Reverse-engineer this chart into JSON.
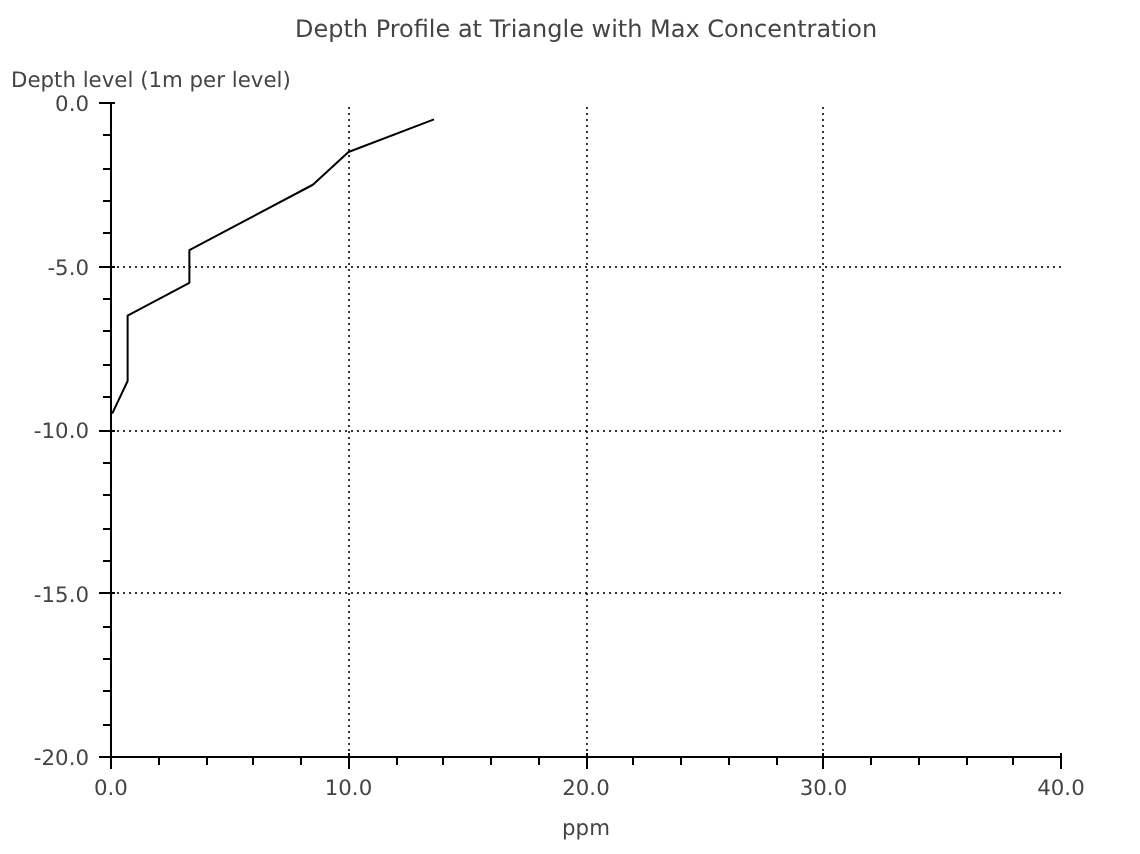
{
  "chart_data": {
    "type": "line",
    "title": "Depth Profile at Triangle with Max Concentration",
    "xlabel": "ppm",
    "ylabel": "Depth level (1m per level)",
    "series": [
      {
        "color": "#000000",
        "x": [
          13.6,
          10,
          8.5,
          3.3,
          3.3,
          0.7,
          0.7,
          0.05
        ],
        "values": [
          -0.5,
          -1.5,
          -2.5,
          -4.5,
          -5.5,
          -6.5,
          -8.5,
          -9.5
        ]
      }
    ],
    "xlim": [
      0,
      40
    ],
    "ylim": [
      -20,
      0
    ],
    "xticks": [
      {
        "value": 0,
        "label": "0.0"
      },
      {
        "value": 10,
        "label": "10.0"
      },
      {
        "value": 20,
        "label": "20.0"
      },
      {
        "value": 30,
        "label": "30.0"
      },
      {
        "value": 40,
        "label": "40.0"
      }
    ],
    "yticks": [
      {
        "value": -20,
        "label": "-20.0"
      },
      {
        "value": -15,
        "label": "-15.0"
      },
      {
        "value": -10,
        "label": "-10.0"
      },
      {
        "value": -5,
        "label": "-5.0"
      },
      {
        "value": 0,
        "label": "0.0"
      }
    ],
    "grid": true,
    "line_style": "solid",
    "marker": "none"
  }
}
